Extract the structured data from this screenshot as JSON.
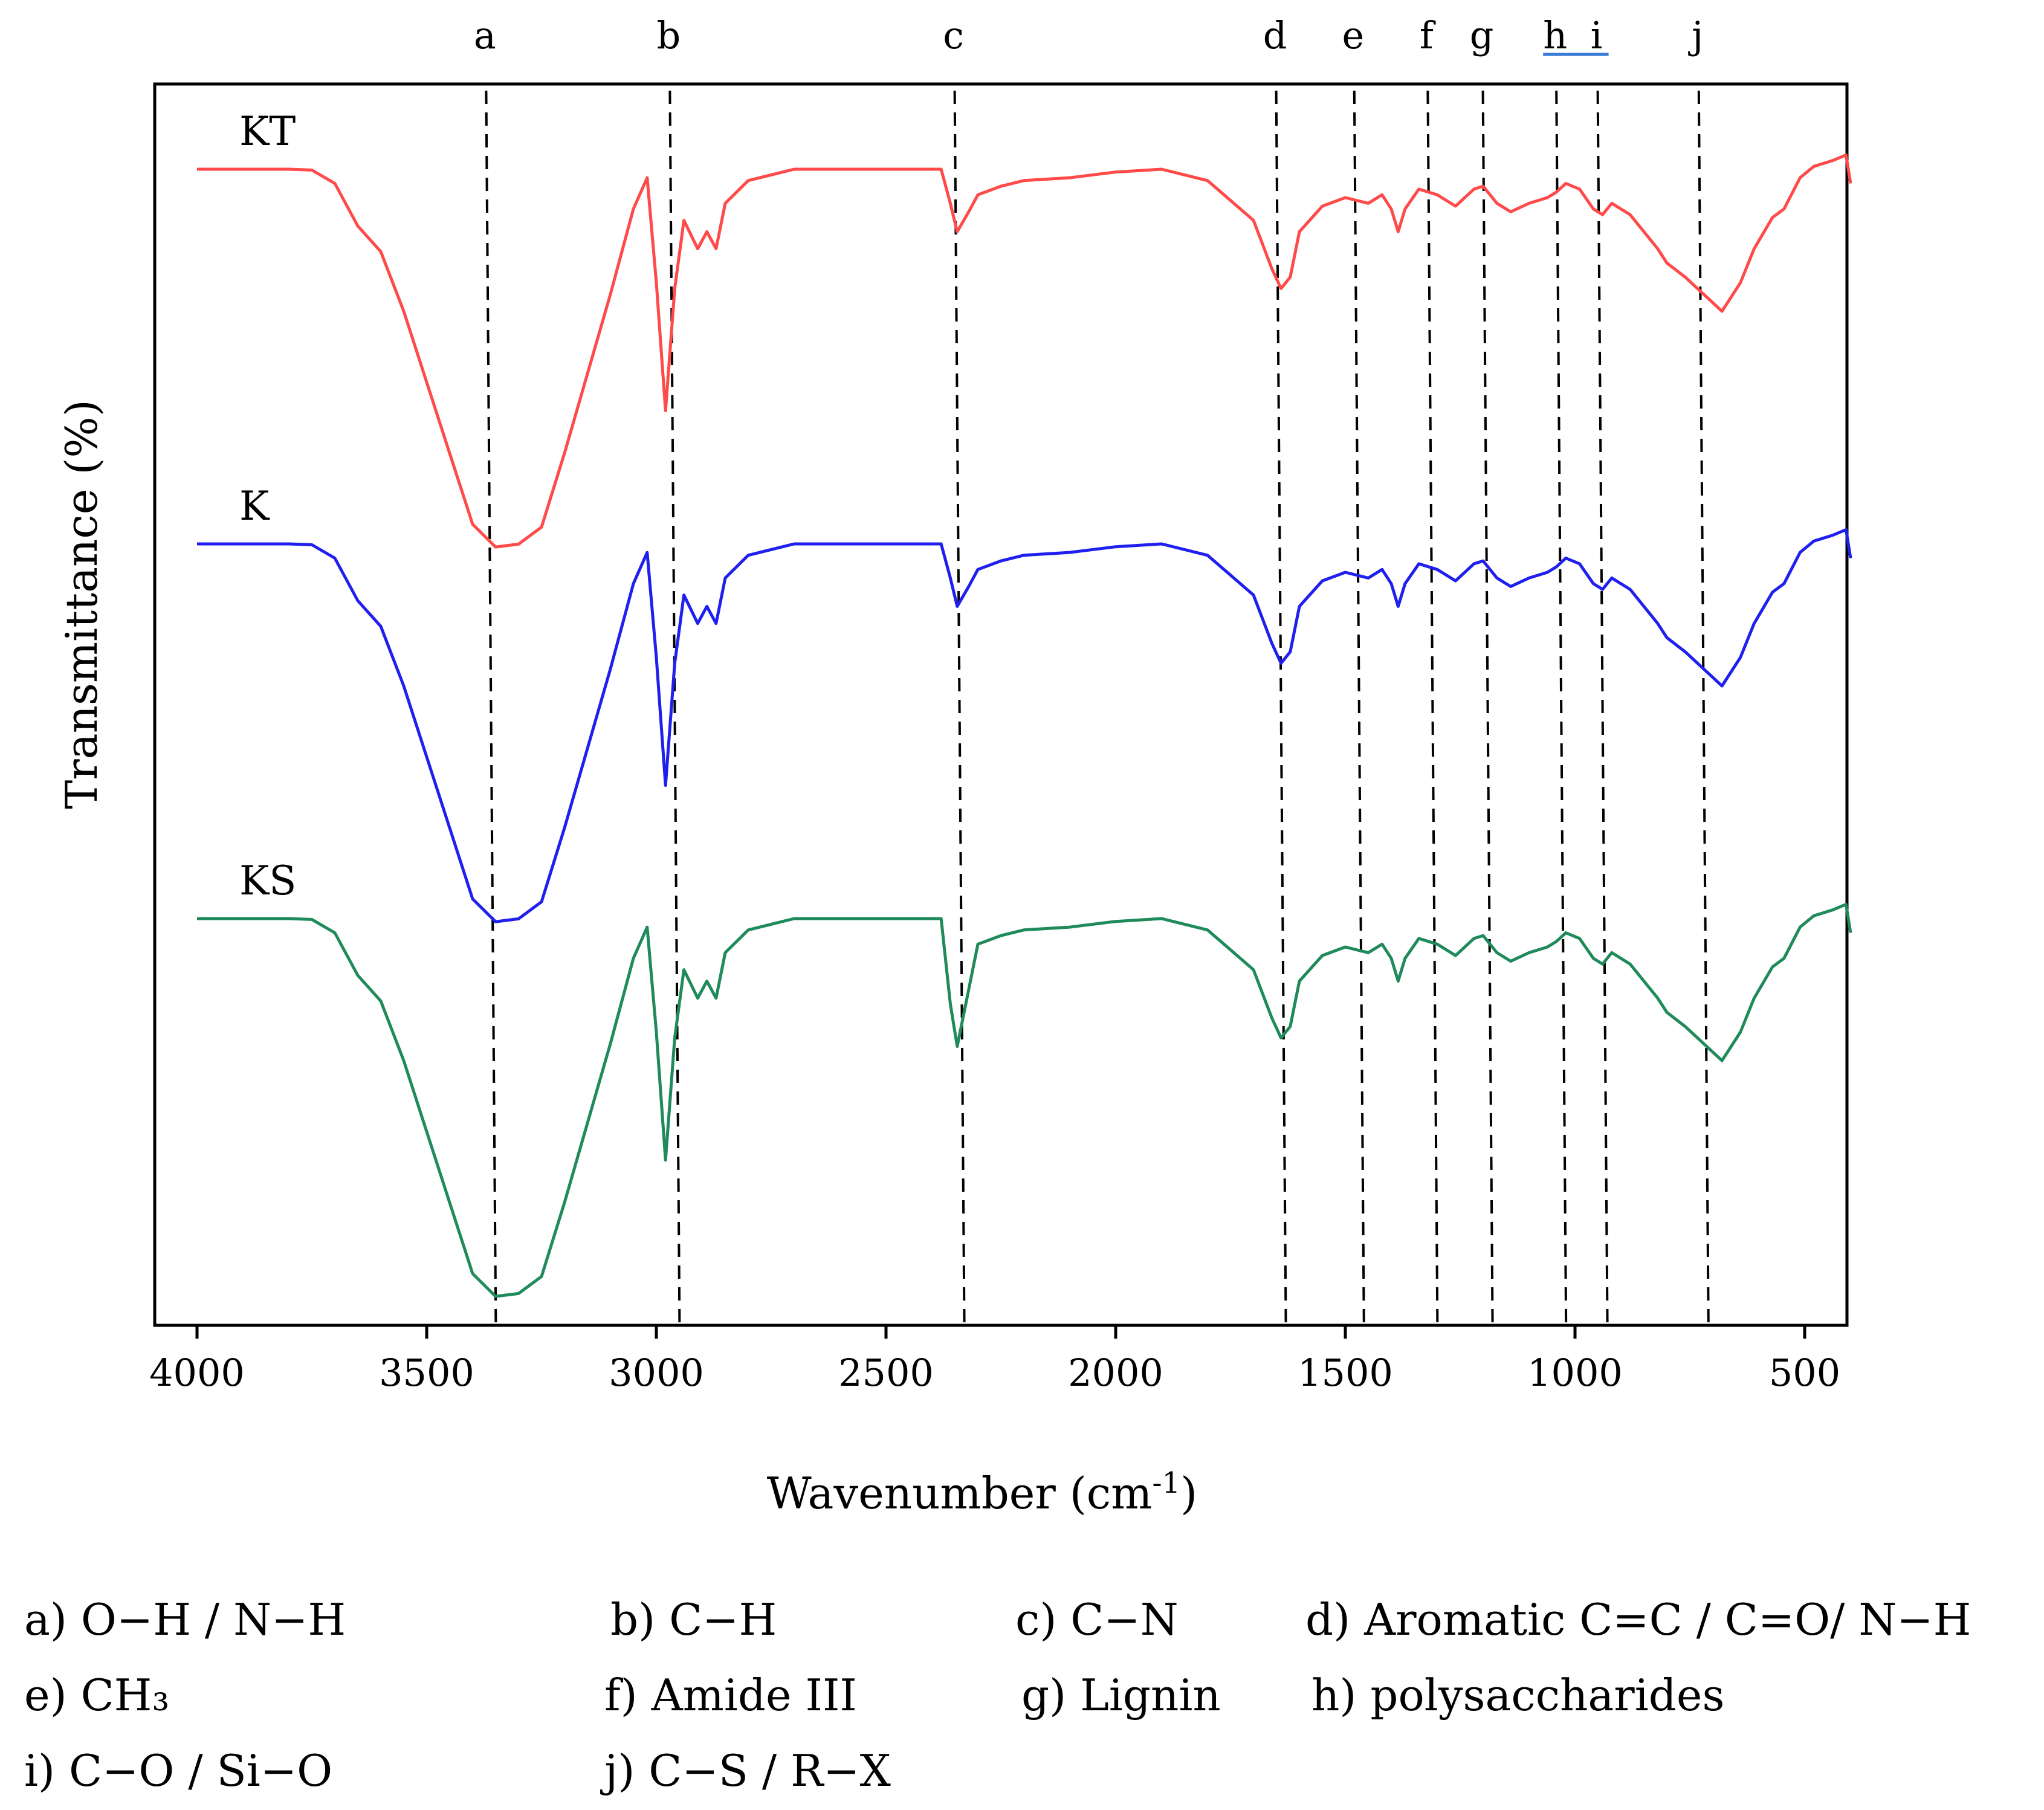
{
  "chart_data": {
    "type": "line",
    "title": "",
    "xlabel": "Wavenumber (cm",
    "xlabel_sup": "-1",
    "xlabel_close": ")",
    "ylabel": "Transmittance (%)",
    "xlim": [
      4000,
      400
    ],
    "x_ticks": [
      4000,
      3500,
      3000,
      2500,
      2000,
      1500,
      1000,
      500
    ],
    "y_ticks_shown": false,
    "grid": false,
    "series": [
      {
        "name": "KT",
        "color": "#ff4a4a",
        "offset": 0,
        "points": [
          [
            4000,
            0
          ],
          [
            3800,
            0
          ],
          [
            3750,
            0.3
          ],
          [
            3700,
            5
          ],
          [
            3650,
            20
          ],
          [
            3600,
            29
          ],
          [
            3550,
            50
          ],
          [
            3500,
            75
          ],
          [
            3450,
            100
          ],
          [
            3400,
            125
          ],
          [
            3350,
            133
          ],
          [
            3300,
            132
          ],
          [
            3250,
            126
          ],
          [
            3200,
            100
          ],
          [
            3150,
            72
          ],
          [
            3100,
            44
          ],
          [
            3050,
            14
          ],
          [
            3020,
            3
          ],
          [
            3000,
            40
          ],
          [
            2980,
            85
          ],
          [
            2960,
            42
          ],
          [
            2940,
            18
          ],
          [
            2910,
            28
          ],
          [
            2890,
            22
          ],
          [
            2870,
            28
          ],
          [
            2850,
            12
          ],
          [
            2800,
            4
          ],
          [
            2700,
            0
          ],
          [
            2500,
            0
          ],
          [
            2380,
            0
          ],
          [
            2360,
            12
          ],
          [
            2345,
            22
          ],
          [
            2320,
            15
          ],
          [
            2300,
            9
          ],
          [
            2250,
            6
          ],
          [
            2200,
            4
          ],
          [
            2100,
            3
          ],
          [
            2000,
            1
          ],
          [
            1900,
            0
          ],
          [
            1800,
            4
          ],
          [
            1700,
            18
          ],
          [
            1660,
            35
          ],
          [
            1640,
            42
          ],
          [
            1620,
            38
          ],
          [
            1600,
            22
          ],
          [
            1550,
            13
          ],
          [
            1500,
            10
          ],
          [
            1450,
            12
          ],
          [
            1420,
            9
          ],
          [
            1400,
            14
          ],
          [
            1385,
            22
          ],
          [
            1370,
            14
          ],
          [
            1340,
            7
          ],
          [
            1300,
            9
          ],
          [
            1260,
            13
          ],
          [
            1220,
            7
          ],
          [
            1200,
            6
          ],
          [
            1170,
            12
          ],
          [
            1140,
            15
          ],
          [
            1100,
            12
          ],
          [
            1060,
            10
          ],
          [
            1040,
            8
          ],
          [
            1020,
            5
          ],
          [
            990,
            7
          ],
          [
            960,
            14
          ],
          [
            940,
            16
          ],
          [
            920,
            12
          ],
          [
            880,
            16
          ],
          [
            850,
            22
          ],
          [
            820,
            28
          ],
          [
            800,
            33
          ],
          [
            760,
            38
          ],
          [
            720,
            44
          ],
          [
            680,
            50
          ],
          [
            640,
            40
          ],
          [
            610,
            28
          ],
          [
            570,
            17
          ],
          [
            545,
            14
          ],
          [
            510,
            3
          ],
          [
            480,
            -1
          ],
          [
            440,
            -3
          ],
          [
            410,
            -5
          ],
          [
            400,
            5
          ]
        ]
      },
      {
        "name": "K",
        "color": "#2020ee",
        "offset": 2,
        "points": [
          [
            4000,
            0
          ],
          [
            3800,
            0
          ],
          [
            3750,
            0.3
          ],
          [
            3700,
            5
          ],
          [
            3650,
            20
          ],
          [
            3600,
            29
          ],
          [
            3550,
            50
          ],
          [
            3500,
            75
          ],
          [
            3450,
            100
          ],
          [
            3400,
            125
          ],
          [
            3350,
            133
          ],
          [
            3300,
            132
          ],
          [
            3250,
            126
          ],
          [
            3200,
            100
          ],
          [
            3150,
            72
          ],
          [
            3100,
            44
          ],
          [
            3050,
            14
          ],
          [
            3020,
            3
          ],
          [
            3000,
            40
          ],
          [
            2980,
            85
          ],
          [
            2960,
            42
          ],
          [
            2940,
            18
          ],
          [
            2910,
            28
          ],
          [
            2890,
            22
          ],
          [
            2870,
            28
          ],
          [
            2850,
            12
          ],
          [
            2800,
            4
          ],
          [
            2700,
            0
          ],
          [
            2500,
            0
          ],
          [
            2380,
            0
          ],
          [
            2360,
            12
          ],
          [
            2345,
            22
          ],
          [
            2320,
            15
          ],
          [
            2300,
            9
          ],
          [
            2250,
            6
          ],
          [
            2200,
            4
          ],
          [
            2100,
            3
          ],
          [
            2000,
            1
          ],
          [
            1900,
            0
          ],
          [
            1800,
            4
          ],
          [
            1700,
            18
          ],
          [
            1660,
            35
          ],
          [
            1640,
            42
          ],
          [
            1620,
            38
          ],
          [
            1600,
            22
          ],
          [
            1550,
            13
          ],
          [
            1500,
            10
          ],
          [
            1450,
            12
          ],
          [
            1420,
            9
          ],
          [
            1400,
            14
          ],
          [
            1385,
            22
          ],
          [
            1370,
            14
          ],
          [
            1340,
            7
          ],
          [
            1300,
            9
          ],
          [
            1260,
            13
          ],
          [
            1220,
            7
          ],
          [
            1200,
            6
          ],
          [
            1170,
            12
          ],
          [
            1140,
            15
          ],
          [
            1100,
            12
          ],
          [
            1060,
            10
          ],
          [
            1040,
            8
          ],
          [
            1020,
            5
          ],
          [
            990,
            7
          ],
          [
            960,
            14
          ],
          [
            940,
            16
          ],
          [
            920,
            12
          ],
          [
            880,
            16
          ],
          [
            850,
            22
          ],
          [
            820,
            28
          ],
          [
            800,
            33
          ],
          [
            760,
            38
          ],
          [
            720,
            44
          ],
          [
            680,
            50
          ],
          [
            640,
            40
          ],
          [
            610,
            28
          ],
          [
            570,
            17
          ],
          [
            545,
            14
          ],
          [
            510,
            3
          ],
          [
            480,
            -1
          ],
          [
            440,
            -3
          ],
          [
            410,
            -5
          ],
          [
            400,
            5
          ]
        ]
      },
      {
        "name": "KS",
        "color": "#1f8a5a",
        "offset": 4,
        "points": [
          [
            4000,
            0
          ],
          [
            3800,
            0
          ],
          [
            3750,
            0.3
          ],
          [
            3700,
            5
          ],
          [
            3650,
            20
          ],
          [
            3600,
            29
          ],
          [
            3550,
            50
          ],
          [
            3500,
            75
          ],
          [
            3450,
            100
          ],
          [
            3400,
            125
          ],
          [
            3350,
            133
          ],
          [
            3300,
            132
          ],
          [
            3250,
            126
          ],
          [
            3200,
            100
          ],
          [
            3150,
            72
          ],
          [
            3100,
            44
          ],
          [
            3050,
            14
          ],
          [
            3020,
            3
          ],
          [
            3000,
            40
          ],
          [
            2980,
            85
          ],
          [
            2960,
            42
          ],
          [
            2940,
            18
          ],
          [
            2910,
            28
          ],
          [
            2890,
            22
          ],
          [
            2870,
            28
          ],
          [
            2850,
            12
          ],
          [
            2800,
            4
          ],
          [
            2700,
            0
          ],
          [
            2500,
            0
          ],
          [
            2380,
            0
          ],
          [
            2360,
            30
          ],
          [
            2345,
            45
          ],
          [
            2320,
            25
          ],
          [
            2300,
            9
          ],
          [
            2250,
            6
          ],
          [
            2200,
            4
          ],
          [
            2100,
            3
          ],
          [
            2000,
            1
          ],
          [
            1900,
            0
          ],
          [
            1800,
            4
          ],
          [
            1700,
            18
          ],
          [
            1660,
            35
          ],
          [
            1640,
            42
          ],
          [
            1620,
            38
          ],
          [
            1600,
            22
          ],
          [
            1550,
            13
          ],
          [
            1500,
            10
          ],
          [
            1450,
            12
          ],
          [
            1420,
            9
          ],
          [
            1400,
            14
          ],
          [
            1385,
            22
          ],
          [
            1370,
            14
          ],
          [
            1340,
            7
          ],
          [
            1300,
            9
          ],
          [
            1260,
            13
          ],
          [
            1220,
            7
          ],
          [
            1200,
            6
          ],
          [
            1170,
            12
          ],
          [
            1140,
            15
          ],
          [
            1100,
            12
          ],
          [
            1060,
            10
          ],
          [
            1040,
            8
          ],
          [
            1020,
            5
          ],
          [
            990,
            7
          ],
          [
            960,
            14
          ],
          [
            940,
            16
          ],
          [
            920,
            12
          ],
          [
            880,
            16
          ],
          [
            850,
            22
          ],
          [
            820,
            28
          ],
          [
            800,
            33
          ],
          [
            760,
            38
          ],
          [
            720,
            44
          ],
          [
            680,
            50
          ],
          [
            640,
            40
          ],
          [
            610,
            28
          ],
          [
            570,
            17
          ],
          [
            545,
            14
          ],
          [
            510,
            3
          ],
          [
            480,
            -1
          ],
          [
            440,
            -3
          ],
          [
            410,
            -5
          ],
          [
            400,
            5
          ]
        ]
      }
    ],
    "peak_lines": [
      {
        "letter": "a",
        "wavenumber": 3360
      },
      {
        "letter": "b",
        "wavenumber": 2960
      },
      {
        "letter": "c",
        "wavenumber": 2340
      },
      {
        "letter": "d",
        "wavenumber": 1640
      },
      {
        "letter": "e",
        "wavenumber": 1470
      },
      {
        "letter": "f",
        "wavenumber": 1310
      },
      {
        "letter": "g",
        "wavenumber": 1190
      },
      {
        "letter": "h",
        "wavenumber": 1030
      },
      {
        "letter": "i",
        "wavenumber": 940
      },
      {
        "letter": "j",
        "wavenumber": 720
      }
    ],
    "legend": {
      "rows": [
        [
          "a)   O−H / N−H",
          "b) C−H",
          "c) C−N",
          "d) Aromatic C=C / C=O/ N−H"
        ],
        [
          "e)          CH₃",
          "f) Amide III",
          "g) Lignin",
          "h) polysaccharides"
        ],
        [
          "i)    C−O / Si−O",
          "j) C−S / R−X"
        ]
      ]
    }
  }
}
